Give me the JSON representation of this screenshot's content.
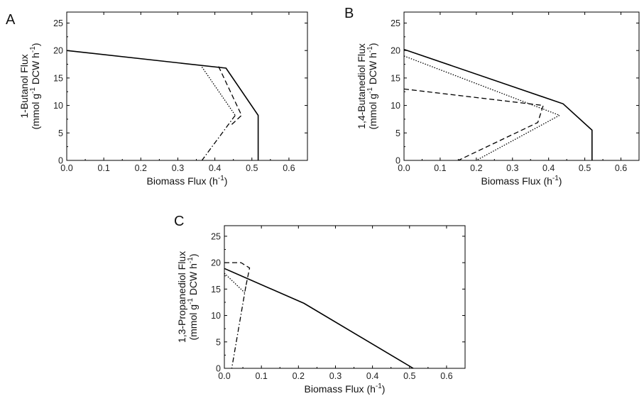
{
  "chart_data": [
    {
      "type": "line",
      "panel_label": "A",
      "xlabel": "Biomass Flux (h",
      "xlabel_sup": "-1",
      "xlabel_end": ")",
      "ylabel_line1": "1-Butanol Flux",
      "ylabel_line2": {
        "a": "(mmol g",
        "sup1": "-1",
        "b": " DCW h",
        "sup2": "-1",
        "c": ")"
      },
      "xlim": [
        0,
        0.65
      ],
      "ylim": [
        0,
        27
      ],
      "xticks": [
        "0.0",
        "0.1",
        "0.2",
        "0.3",
        "0.4",
        "0.5",
        "0.6"
      ],
      "yticks": [
        "0",
        "5",
        "10",
        "15",
        "20",
        "25"
      ],
      "series": [
        {
          "style": "solid",
          "x": [
            0.0,
            0.43,
            0.517,
            0.517
          ],
          "y": [
            20.0,
            16.8,
            8.2,
            0
          ]
        },
        {
          "style": "dashed",
          "x": [
            0.41,
            0.472,
            0.445
          ],
          "y": [
            17.1,
            8.2,
            6.5
          ]
        },
        {
          "style": "dotted",
          "x": [
            0.365,
            0.455
          ],
          "y": [
            17.0,
            8.2
          ]
        },
        {
          "style": "dashdot",
          "x": [
            0.455,
            0.365
          ],
          "y": [
            8.2,
            0
          ]
        }
      ]
    },
    {
      "type": "line",
      "panel_label": "B",
      "xlabel": "Biomass Flux (h",
      "xlabel_sup": "-1",
      "xlabel_end": ")",
      "ylabel_line1": "1,4-Butanediol Flux",
      "ylabel_line2": {
        "a": "(mmol g",
        "sup1": "-1",
        "b": " DCW h",
        "sup2": "-1",
        "c": ")"
      },
      "xlim": [
        0,
        0.65
      ],
      "ylim": [
        0,
        27
      ],
      "xticks": [
        "0.0",
        "0.1",
        "0.2",
        "0.3",
        "0.4",
        "0.5",
        "0.6"
      ],
      "yticks": [
        "0",
        "5",
        "10",
        "15",
        "20",
        "25"
      ],
      "series": [
        {
          "style": "solid",
          "x": [
            0.0,
            0.44,
            0.52,
            0.52
          ],
          "y": [
            20.2,
            10.3,
            5.5,
            0
          ]
        },
        {
          "style": "dotted",
          "x": [
            0.0,
            0.43,
            0.2
          ],
          "y": [
            19.0,
            8.2,
            0
          ]
        },
        {
          "style": "dashed",
          "x": [
            0.0,
            0.385,
            0.37,
            0.15
          ],
          "y": [
            13.0,
            10.0,
            6.9,
            0
          ]
        }
      ]
    },
    {
      "type": "line",
      "panel_label": "C",
      "xlabel": "Biomass Flux (h",
      "xlabel_sup": "-1",
      "xlabel_end": ")",
      "ylabel_line1": "1,3-Propanediol Flux",
      "ylabel_line2": {
        "a": "(mmol g",
        "sup1": "-1",
        "b": " DCW h",
        "sup2": "-1",
        "c": ")"
      },
      "xlim": [
        0,
        0.65
      ],
      "ylim": [
        0,
        27
      ],
      "xticks": [
        "0.0",
        "0.1",
        "0.2",
        "0.3",
        "0.4",
        "0.5",
        "0.6"
      ],
      "yticks": [
        "0",
        "5",
        "10",
        "15",
        "20",
        "25"
      ],
      "series": [
        {
          "style": "solid",
          "x": [
            0.0,
            0.215,
            0.51
          ],
          "y": [
            18.9,
            12.3,
            0
          ]
        },
        {
          "style": "dashed",
          "x": [
            0.0,
            0.045,
            0.068,
            0.058
          ],
          "y": [
            20.0,
            20.0,
            19.0,
            15.5
          ]
        },
        {
          "style": "dotted",
          "x": [
            0.0,
            0.055
          ],
          "y": [
            18.0,
            14.3
          ]
        },
        {
          "style": "dashdot",
          "x": [
            0.058,
            0.02
          ],
          "y": [
            15.5,
            0
          ]
        }
      ]
    }
  ]
}
